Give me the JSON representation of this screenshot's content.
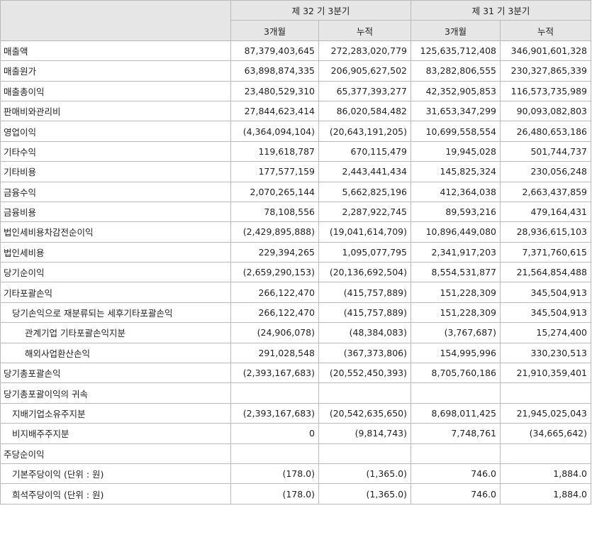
{
  "header": {
    "period_current": "제 32 기 3분기",
    "period_prior": "제 31 기 3분기",
    "sub_3m": "3개월",
    "sub_cum": "누적"
  },
  "rows": [
    {
      "label": "매출액",
      "indent": 0,
      "v": [
        "87,379,403,645",
        "272,283,020,779",
        "125,635,712,408",
        "346,901,601,328"
      ]
    },
    {
      "label": "매출원가",
      "indent": 0,
      "v": [
        "63,898,874,335",
        "206,905,627,502",
        "83,282,806,555",
        "230,327,865,339"
      ]
    },
    {
      "label": "매출총이익",
      "indent": 0,
      "v": [
        "23,480,529,310",
        "65,377,393,277",
        "42,352,905,853",
        "116,573,735,989"
      ]
    },
    {
      "label": "판매비와관리비",
      "indent": 0,
      "v": [
        "27,844,623,414",
        "86,020,584,482",
        "31,653,347,299",
        "90,093,082,803"
      ]
    },
    {
      "label": "영업이익",
      "indent": 0,
      "v": [
        "(4,364,094,104)",
        "(20,643,191,205)",
        "10,699,558,554",
        "26,480,653,186"
      ]
    },
    {
      "label": "기타수익",
      "indent": 0,
      "v": [
        "119,618,787",
        "670,115,479",
        "19,945,028",
        "501,744,737"
      ]
    },
    {
      "label": "기타비용",
      "indent": 0,
      "v": [
        "177,577,159",
        "2,443,441,434",
        "145,825,324",
        "230,056,248"
      ]
    },
    {
      "label": "금융수익",
      "indent": 0,
      "v": [
        "2,070,265,144",
        "5,662,825,196",
        "412,364,038",
        "2,663,437,859"
      ]
    },
    {
      "label": "금융비용",
      "indent": 0,
      "v": [
        "78,108,556",
        "2,287,922,745",
        "89,593,216",
        "479,164,431"
      ]
    },
    {
      "label": "법인세비용차감전순이익",
      "indent": 0,
      "v": [
        "(2,429,895,888)",
        "(19,041,614,709)",
        "10,896,449,080",
        "28,936,615,103"
      ]
    },
    {
      "label": "법인세비용",
      "indent": 0,
      "v": [
        "229,394,265",
        "1,095,077,795",
        "2,341,917,203",
        "7,371,760,615"
      ]
    },
    {
      "label": "당기순이익",
      "indent": 0,
      "v": [
        "(2,659,290,153)",
        "(20,136,692,504)",
        "8,554,531,877",
        "21,564,854,488"
      ]
    },
    {
      "label": "기타포괄손익",
      "indent": 0,
      "v": [
        "266,122,470",
        "(415,757,889)",
        "151,228,309",
        "345,504,913"
      ]
    },
    {
      "label": "당기손익으로 재분류되는 세후기타포괄손익",
      "indent": 1,
      "v": [
        "266,122,470",
        "(415,757,889)",
        "151,228,309",
        "345,504,913"
      ]
    },
    {
      "label": "관계기업 기타포괄손익지분",
      "indent": 2,
      "v": [
        "(24,906,078)",
        "(48,384,083)",
        "(3,767,687)",
        "15,274,400"
      ]
    },
    {
      "label": "해외사업환산손익",
      "indent": 2,
      "v": [
        "291,028,548",
        "(367,373,806)",
        "154,995,996",
        "330,230,513"
      ]
    },
    {
      "label": "당기총포괄손익",
      "indent": 0,
      "v": [
        "(2,393,167,683)",
        "(20,552,450,393)",
        "8,705,760,186",
        "21,910,359,401"
      ]
    },
    {
      "label": "당기총포괄이익의 귀속",
      "indent": 0,
      "v": [
        "",
        "",
        "",
        ""
      ]
    },
    {
      "label": "지배기업소유주지분",
      "indent": 1,
      "v": [
        "(2,393,167,683)",
        "(20,542,635,650)",
        "8,698,011,425",
        "21,945,025,043"
      ]
    },
    {
      "label": "비지배주주지분",
      "indent": 1,
      "v": [
        "0",
        "(9,814,743)",
        "7,748,761",
        "(34,665,642)"
      ]
    },
    {
      "label": "주당순이익",
      "indent": 0,
      "v": [
        "",
        "",
        "",
        ""
      ]
    },
    {
      "label": "기본주당이익 (단위 : 원)",
      "indent": 1,
      "v": [
        "(178.0)",
        "(1,365.0)",
        "746.0",
        "1,884.0"
      ]
    },
    {
      "label": "희석주당이익 (단위 : 원)",
      "indent": 1,
      "v": [
        "(178.0)",
        "(1,365.0)",
        "746.0",
        "1,884.0"
      ]
    }
  ]
}
